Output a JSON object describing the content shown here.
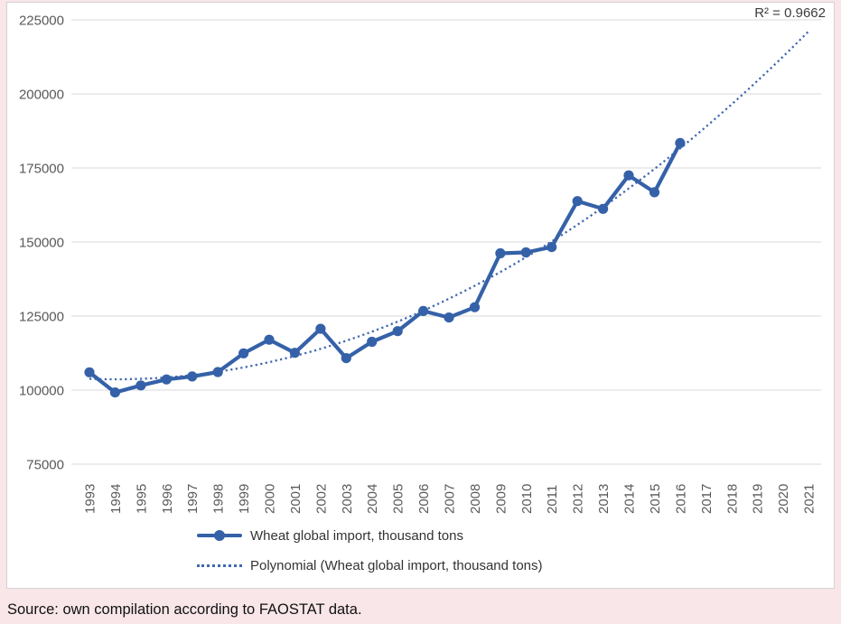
{
  "window": {
    "background_color": "#f8e6e9"
  },
  "chart": {
    "r_squared_label": "R² = 0.9662",
    "legend": {
      "items": [
        {
          "label": "Wheat global import, thousand tons",
          "swatch": "solid-line-with-circle-marker"
        },
        {
          "label": "Polynomial (Wheat global import, thousand tons)",
          "swatch": "dotted-line"
        }
      ]
    }
  },
  "chart_data": {
    "type": "line",
    "title": "",
    "xlabel": "",
    "ylabel": "",
    "x_ticks": [
      "1993",
      "1994",
      "1995",
      "1996",
      "1997",
      "1998",
      "1999",
      "2000",
      "2001",
      "2002",
      "2003",
      "2004",
      "2005",
      "2006",
      "2007",
      "2008",
      "2009",
      "2010",
      "2011",
      "2012",
      "2013",
      "2014",
      "2015",
      "2016",
      "2017",
      "2018",
      "2019",
      "2020",
      "2021"
    ],
    "yticks": [
      75000,
      100000,
      125000,
      150000,
      175000,
      200000,
      225000
    ],
    "ylim": [
      75000,
      225000
    ],
    "grid": "horizontal-only",
    "legend_position": "bottom",
    "series": [
      {
        "name": "Wheat global import, thousand tons",
        "style": "solid",
        "marker": "circle",
        "years": [
          1993,
          1994,
          1995,
          1996,
          1997,
          1998,
          1999,
          2000,
          2001,
          2002,
          2003,
          2004,
          2005,
          2006,
          2007,
          2008,
          2009,
          2010,
          2011,
          2012,
          2013,
          2014,
          2015,
          2016
        ],
        "values": [
          106000,
          99200,
          101600,
          103600,
          104600,
          106100,
          112400,
          117000,
          112600,
          120700,
          110800,
          116300,
          119900,
          126700,
          124500,
          128000,
          146200,
          146500,
          148300,
          163800,
          161200,
          172500,
          166800,
          183400
        ]
      },
      {
        "name": "Polynomial (Wheat global import, thousand tons)",
        "style": "dotted",
        "fit": "polynomial-degree-2-of-series-0",
        "extends_to_year": 2021,
        "r_squared": 0.9662
      }
    ],
    "colors": {
      "series_blue": "#3561a8",
      "trend_blue": "#4068b0",
      "gridline_gray": "#d9d9d9",
      "tick_text_gray": "#595959",
      "label_text_dark": "#333333",
      "background_pink": "#f8e6e9"
    }
  },
  "footer": {
    "source_text": "Source: own compilation according to FAOSTAT data."
  }
}
